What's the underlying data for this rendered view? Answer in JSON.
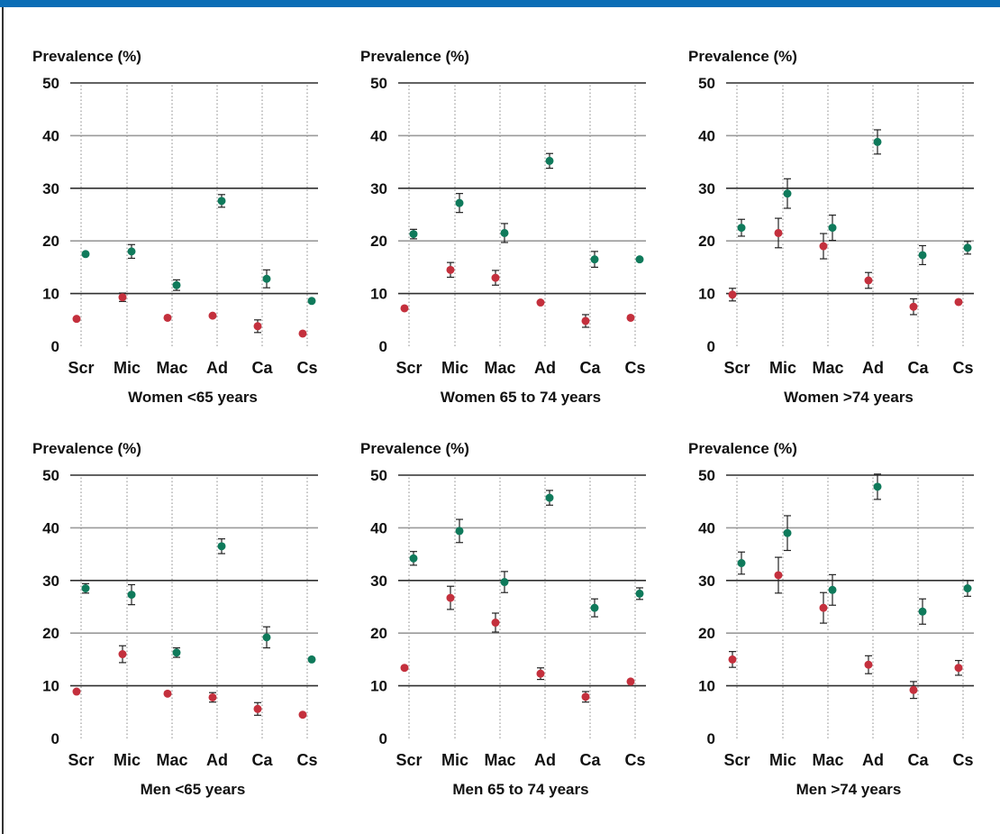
{
  "colors": {
    "header_bar": "#0a6db5",
    "series_a": "#c4303d",
    "series_b": "#0f7a5b"
  },
  "chart_data": [
    {
      "type": "scatter",
      "title": "Women  <65 years",
      "ylabel": "Prevalence (%)",
      "categories": [
        "Scr",
        "Mic",
        "Mac",
        "Ad",
        "Ca",
        "Cs"
      ],
      "ylim": [
        0,
        50
      ],
      "yticks": [
        0,
        10,
        20,
        30,
        40,
        50
      ],
      "grid": true,
      "error_bars": true,
      "series": [
        {
          "color": "#c4303d",
          "values": [
            5.2,
            9.3,
            5.4,
            5.8,
            3.8,
            2.4
          ],
          "err_low": [
            0,
            0.8,
            0,
            0,
            1.2,
            0
          ],
          "err_high": [
            0,
            0.8,
            0,
            0,
            1.2,
            0
          ]
        },
        {
          "color": "#0f7a5b",
          "values": [
            17.5,
            18.0,
            11.6,
            27.6,
            12.8,
            8.6
          ],
          "err_low": [
            0,
            1.3,
            1.0,
            1.2,
            1.7,
            0
          ],
          "err_high": [
            0,
            1.3,
            1.0,
            1.2,
            1.7,
            0
          ]
        }
      ]
    },
    {
      "type": "scatter",
      "title": "Women 65 to 74 years",
      "ylabel": "Prevalence (%)",
      "categories": [
        "Scr",
        "Mic",
        "Mac",
        "Ad",
        "Ca",
        "Cs"
      ],
      "ylim": [
        0,
        50
      ],
      "yticks": [
        0,
        10,
        20,
        30,
        40,
        50
      ],
      "grid": true,
      "error_bars": true,
      "series": [
        {
          "color": "#c4303d",
          "values": [
            7.2,
            14.5,
            13.0,
            8.3,
            4.8,
            5.4
          ],
          "err_low": [
            0,
            1.4,
            1.4,
            0,
            1.2,
            0
          ],
          "err_high": [
            0,
            1.4,
            1.4,
            0,
            1.2,
            0
          ]
        },
        {
          "color": "#0f7a5b",
          "values": [
            21.3,
            27.2,
            21.5,
            35.2,
            16.5,
            16.5
          ],
          "err_low": [
            0.9,
            1.8,
            1.8,
            1.4,
            1.5,
            0
          ],
          "err_high": [
            0.9,
            1.8,
            1.8,
            1.4,
            1.5,
            0
          ]
        }
      ]
    },
    {
      "type": "scatter",
      "title": "Women >74 years",
      "ylabel": "Prevalence (%)",
      "categories": [
        "Scr",
        "Mic",
        "Mac",
        "Ad",
        "Ca",
        "Cs"
      ],
      "ylim": [
        0,
        50
      ],
      "yticks": [
        0,
        10,
        20,
        30,
        40,
        50
      ],
      "grid": true,
      "error_bars": true,
      "series": [
        {
          "color": "#c4303d",
          "values": [
            9.8,
            21.5,
            19.0,
            12.5,
            7.5,
            8.4
          ],
          "err_low": [
            1.2,
            2.8,
            2.4,
            1.5,
            1.5,
            0
          ],
          "err_high": [
            1.2,
            2.8,
            2.4,
            1.5,
            1.5,
            0
          ]
        },
        {
          "color": "#0f7a5b",
          "values": [
            22.5,
            29.0,
            22.5,
            38.8,
            17.3,
            18.7
          ],
          "err_low": [
            1.6,
            2.8,
            2.4,
            2.3,
            1.8,
            1.2
          ],
          "err_high": [
            1.6,
            2.8,
            2.4,
            2.3,
            1.8,
            1.2
          ]
        }
      ]
    },
    {
      "type": "scatter",
      "title": "Men  <65 years",
      "ylabel": "Prevalence (%)",
      "categories": [
        "Scr",
        "Mic",
        "Mac",
        "Ad",
        "Ca",
        "Cs"
      ],
      "ylim": [
        0,
        50
      ],
      "yticks": [
        0,
        10,
        20,
        30,
        40,
        50
      ],
      "grid": true,
      "error_bars": true,
      "series": [
        {
          "color": "#c4303d",
          "values": [
            8.9,
            16.0,
            8.5,
            7.8,
            5.6,
            4.5
          ],
          "err_low": [
            0,
            1.6,
            0,
            0.9,
            1.2,
            0
          ],
          "err_high": [
            0,
            1.6,
            0,
            0.9,
            1.2,
            0
          ]
        },
        {
          "color": "#0f7a5b",
          "values": [
            28.5,
            27.3,
            16.3,
            36.5,
            19.2,
            15.0
          ],
          "err_low": [
            0.9,
            1.9,
            0.9,
            1.4,
            2.0,
            0
          ],
          "err_high": [
            0.9,
            1.9,
            0.9,
            1.4,
            2.0,
            0
          ]
        }
      ]
    },
    {
      "type": "scatter",
      "title": "Men 65 to 74 years",
      "ylabel": "Prevalence (%)",
      "categories": [
        "Scr",
        "Mic",
        "Mac",
        "Ad",
        "Ca",
        "Cs"
      ],
      "ylim": [
        0,
        50
      ],
      "yticks": [
        0,
        10,
        20,
        30,
        40,
        50
      ],
      "grid": true,
      "error_bars": true,
      "series": [
        {
          "color": "#c4303d",
          "values": [
            13.4,
            26.7,
            22.0,
            12.3,
            7.9,
            10.8
          ],
          "err_low": [
            0,
            2.2,
            1.8,
            1.1,
            1.0,
            0
          ],
          "err_high": [
            0,
            2.2,
            1.8,
            1.1,
            1.0,
            0
          ]
        },
        {
          "color": "#0f7a5b",
          "values": [
            34.2,
            39.4,
            29.7,
            45.7,
            24.8,
            27.5
          ],
          "err_low": [
            1.3,
            2.2,
            2.0,
            1.4,
            1.7,
            1.1
          ],
          "err_high": [
            1.3,
            2.2,
            2.0,
            1.4,
            1.7,
            1.1
          ]
        }
      ]
    },
    {
      "type": "scatter",
      "title": "Men >74 years",
      "ylabel": "Prevalence (%)",
      "categories": [
        "Scr",
        "Mic",
        "Mac",
        "Ad",
        "Ca",
        "Cs"
      ],
      "ylim": [
        0,
        50
      ],
      "yticks": [
        0,
        10,
        20,
        30,
        40,
        50
      ],
      "grid": true,
      "error_bars": true,
      "series": [
        {
          "color": "#c4303d",
          "values": [
            15.0,
            31.0,
            24.8,
            14.0,
            9.2,
            13.4
          ],
          "err_low": [
            1.5,
            3.4,
            2.9,
            1.7,
            1.6,
            1.4
          ],
          "err_high": [
            1.5,
            3.4,
            2.9,
            1.7,
            1.6,
            1.4
          ]
        },
        {
          "color": "#0f7a5b",
          "values": [
            33.3,
            39.0,
            28.2,
            47.8,
            24.1,
            28.5
          ],
          "err_low": [
            2.1,
            3.3,
            2.9,
            2.4,
            2.4,
            1.5
          ],
          "err_high": [
            2.1,
            3.3,
            2.9,
            2.4,
            2.4,
            1.5
          ]
        }
      ]
    }
  ]
}
